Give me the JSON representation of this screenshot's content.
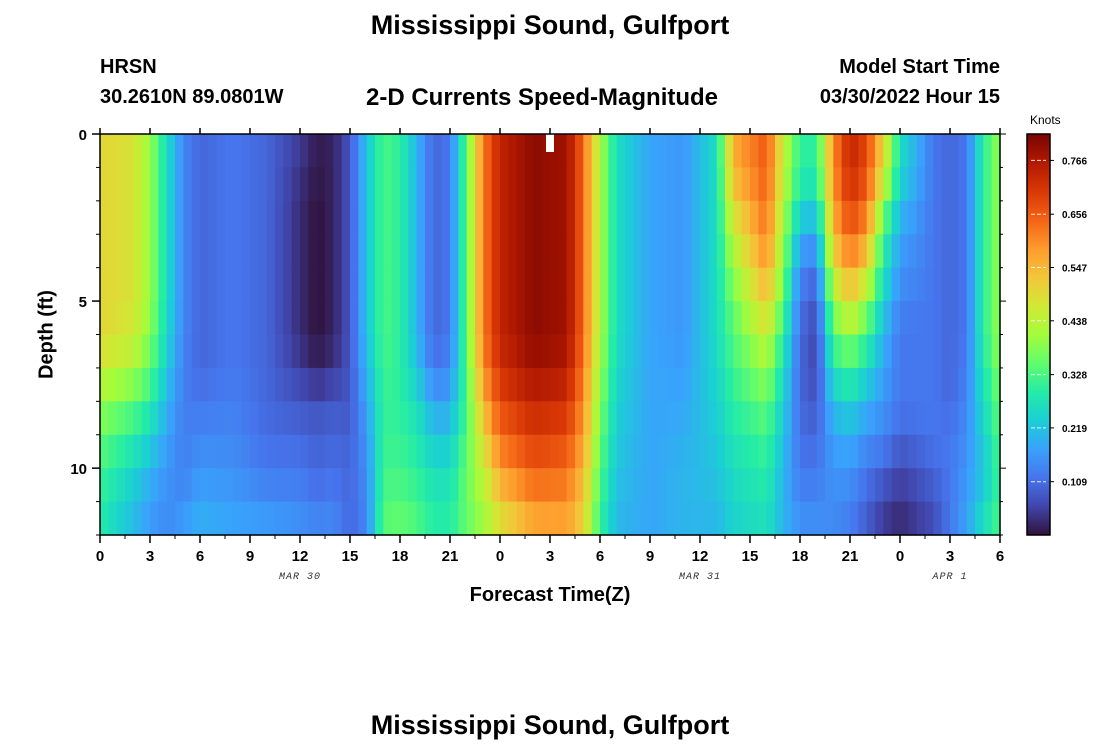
{
  "page": {
    "title_top": "Mississippi Sound, Gulfport",
    "title_bottom": "Mississippi Sound, Gulfport",
    "station": "HRSN",
    "coords": "30.2610N  89.0801W",
    "subtitle": "2-D Currents Speed-Magnitude",
    "model_start_label": "Model Start Time",
    "model_start_value": "03/30/2022 Hour 15"
  },
  "chart_data": {
    "type": "heatmap",
    "title": "2-D Currents Speed-Magnitude",
    "xlabel": "Forecast Time(Z)",
    "ylabel": "Depth (ft)",
    "x_range_hours": [
      0,
      54
    ],
    "y_range_ft": [
      0,
      12
    ],
    "y_inverted": true,
    "x_ticks": [
      "0",
      "3",
      "6",
      "9",
      "12",
      "15",
      "18",
      "21",
      "0",
      "3",
      "6",
      "9",
      "12",
      "15",
      "18",
      "21",
      "0",
      "3",
      "6"
    ],
    "date_labels": [
      {
        "label": "MAR 30",
        "hour": 12
      },
      {
        "label": "MAR 31",
        "hour": 36
      },
      {
        "label": "APR 1",
        "hour": 51
      }
    ],
    "y_ticks": [
      0,
      5,
      10
    ],
    "colorbar": {
      "unit": "Knots",
      "min": 0.0,
      "max": 0.82,
      "ticks": [
        0.109,
        0.219,
        0.328,
        0.438,
        0.547,
        0.656,
        0.766
      ],
      "colors": [
        "#30123b",
        "#4145ab",
        "#4675ed",
        "#39a2fc",
        "#1bcfd4",
        "#24eca6",
        "#61fc6c",
        "#a4fc3b",
        "#d1e834",
        "#f3c63a",
        "#fe9b2d",
        "#f36315",
        "#d93806",
        "#b11901",
        "#7a0402"
      ]
    },
    "current_time_marker_hour": 27,
    "depth_levels_ft": [
      0,
      1,
      2,
      3,
      4,
      5,
      6,
      7,
      8,
      9,
      10,
      11,
      12
    ],
    "speed_keyframes": [
      {
        "h": 0,
        "s": [
          0.5,
          0.5,
          0.5,
          0.5,
          0.5,
          0.5,
          0.5,
          0.46,
          0.4,
          0.36,
          0.32,
          0.3,
          0.28
        ]
      },
      {
        "h": 2,
        "s": [
          0.48,
          0.48,
          0.48,
          0.48,
          0.48,
          0.48,
          0.46,
          0.42,
          0.35,
          0.3,
          0.25,
          0.22,
          0.2
        ]
      },
      {
        "h": 3,
        "s": [
          0.4,
          0.4,
          0.4,
          0.4,
          0.4,
          0.4,
          0.38,
          0.35,
          0.3,
          0.25,
          0.2,
          0.18,
          0.16
        ]
      },
      {
        "h": 4,
        "s": [
          0.26,
          0.26,
          0.26,
          0.26,
          0.26,
          0.26,
          0.25,
          0.23,
          0.2,
          0.18,
          0.16,
          0.15,
          0.14
        ]
      },
      {
        "h": 5,
        "s": [
          0.14,
          0.14,
          0.14,
          0.14,
          0.14,
          0.14,
          0.14,
          0.13,
          0.13,
          0.13,
          0.13,
          0.15,
          0.18
        ]
      },
      {
        "h": 6,
        "s": [
          0.1,
          0.1,
          0.1,
          0.1,
          0.1,
          0.1,
          0.1,
          0.1,
          0.12,
          0.14,
          0.16,
          0.18,
          0.2
        ]
      },
      {
        "h": 8,
        "s": [
          0.12,
          0.12,
          0.12,
          0.12,
          0.12,
          0.12,
          0.12,
          0.12,
          0.13,
          0.14,
          0.15,
          0.17,
          0.18
        ]
      },
      {
        "h": 10,
        "s": [
          0.1,
          0.1,
          0.1,
          0.1,
          0.1,
          0.1,
          0.1,
          0.1,
          0.1,
          0.11,
          0.12,
          0.15,
          0.18
        ]
      },
      {
        "h": 12,
        "s": [
          0.05,
          0.04,
          0.03,
          0.03,
          0.03,
          0.03,
          0.03,
          0.05,
          0.08,
          0.1,
          0.12,
          0.14,
          0.16
        ]
      },
      {
        "h": 13,
        "s": [
          0.01,
          0.01,
          0.0,
          0.0,
          0.0,
          0.0,
          0.0,
          0.02,
          0.07,
          0.09,
          0.1,
          0.12,
          0.15
        ]
      },
      {
        "h": 14,
        "s": [
          0.02,
          0.02,
          0.02,
          0.02,
          0.02,
          0.02,
          0.02,
          0.04,
          0.08,
          0.1,
          0.11,
          0.13,
          0.15
        ]
      },
      {
        "h": 15,
        "s": [
          0.08,
          0.08,
          0.08,
          0.08,
          0.08,
          0.08,
          0.08,
          0.08,
          0.08,
          0.09,
          0.1,
          0.1,
          0.1
        ]
      },
      {
        "h": 16,
        "s": [
          0.22,
          0.22,
          0.22,
          0.22,
          0.22,
          0.22,
          0.22,
          0.2,
          0.18,
          0.16,
          0.15,
          0.14,
          0.14
        ]
      },
      {
        "h": 17,
        "s": [
          0.33,
          0.33,
          0.33,
          0.33,
          0.33,
          0.33,
          0.33,
          0.32,
          0.31,
          0.31,
          0.32,
          0.33,
          0.35
        ]
      },
      {
        "h": 18,
        "s": [
          0.3,
          0.3,
          0.3,
          0.3,
          0.3,
          0.3,
          0.3,
          0.3,
          0.3,
          0.31,
          0.32,
          0.34,
          0.36
        ]
      },
      {
        "h": 19,
        "s": [
          0.2,
          0.2,
          0.2,
          0.2,
          0.2,
          0.2,
          0.2,
          0.22,
          0.26,
          0.28,
          0.3,
          0.32,
          0.34
        ]
      },
      {
        "h": 20,
        "s": [
          0.1,
          0.1,
          0.1,
          0.1,
          0.1,
          0.1,
          0.1,
          0.12,
          0.18,
          0.22,
          0.26,
          0.28,
          0.3
        ]
      },
      {
        "h": 21,
        "s": [
          0.12,
          0.12,
          0.12,
          0.12,
          0.12,
          0.12,
          0.12,
          0.14,
          0.18,
          0.22,
          0.26,
          0.28,
          0.3
        ]
      },
      {
        "h": 22,
        "s": [
          0.35,
          0.35,
          0.35,
          0.35,
          0.35,
          0.35,
          0.35,
          0.34,
          0.33,
          0.34,
          0.36,
          0.36,
          0.35
        ]
      },
      {
        "h": 23,
        "s": [
          0.62,
          0.62,
          0.62,
          0.62,
          0.62,
          0.62,
          0.62,
          0.6,
          0.55,
          0.5,
          0.45,
          0.42,
          0.4
        ]
      },
      {
        "h": 24,
        "s": [
          0.74,
          0.74,
          0.74,
          0.74,
          0.74,
          0.74,
          0.74,
          0.72,
          0.68,
          0.64,
          0.58,
          0.52,
          0.46
        ]
      },
      {
        "h": 26,
        "s": [
          0.8,
          0.8,
          0.8,
          0.8,
          0.8,
          0.8,
          0.8,
          0.78,
          0.74,
          0.7,
          0.66,
          0.6,
          0.55
        ]
      },
      {
        "h": 28,
        "s": [
          0.78,
          0.78,
          0.78,
          0.78,
          0.78,
          0.78,
          0.78,
          0.76,
          0.72,
          0.68,
          0.64,
          0.6,
          0.56
        ]
      },
      {
        "h": 29,
        "s": [
          0.64,
          0.64,
          0.64,
          0.64,
          0.64,
          0.64,
          0.64,
          0.62,
          0.6,
          0.58,
          0.55,
          0.52,
          0.5
        ]
      },
      {
        "h": 30,
        "s": [
          0.42,
          0.42,
          0.42,
          0.42,
          0.42,
          0.42,
          0.42,
          0.4,
          0.38,
          0.36,
          0.34,
          0.32,
          0.3
        ]
      },
      {
        "h": 31,
        "s": [
          0.26,
          0.26,
          0.26,
          0.26,
          0.26,
          0.26,
          0.26,
          0.25,
          0.24,
          0.23,
          0.22,
          0.21,
          0.2
        ]
      },
      {
        "h": 33,
        "s": [
          0.18,
          0.18,
          0.18,
          0.18,
          0.18,
          0.18,
          0.18,
          0.18,
          0.18,
          0.18,
          0.18,
          0.18,
          0.18
        ]
      },
      {
        "h": 35,
        "s": [
          0.16,
          0.16,
          0.16,
          0.16,
          0.16,
          0.16,
          0.16,
          0.17,
          0.18,
          0.19,
          0.2,
          0.2,
          0.2
        ]
      },
      {
        "h": 37,
        "s": [
          0.26,
          0.26,
          0.26,
          0.26,
          0.26,
          0.26,
          0.26,
          0.25,
          0.24,
          0.23,
          0.22,
          0.21,
          0.2
        ]
      },
      {
        "h": 38,
        "s": [
          0.56,
          0.56,
          0.5,
          0.45,
          0.4,
          0.36,
          0.34,
          0.32,
          0.3,
          0.28,
          0.26,
          0.25,
          0.24
        ]
      },
      {
        "h": 40,
        "s": [
          0.66,
          0.66,
          0.64,
          0.62,
          0.58,
          0.52,
          0.46,
          0.4,
          0.36,
          0.32,
          0.3,
          0.28,
          0.26
        ]
      },
      {
        "h": 41,
        "s": [
          0.45,
          0.45,
          0.43,
          0.4,
          0.38,
          0.34,
          0.3,
          0.26,
          0.24,
          0.22,
          0.2,
          0.2,
          0.2
        ]
      },
      {
        "h": 42,
        "s": [
          0.3,
          0.3,
          0.26,
          0.2,
          0.14,
          0.12,
          0.1,
          0.1,
          0.1,
          0.11,
          0.12,
          0.14,
          0.16
        ]
      },
      {
        "h": 43,
        "s": [
          0.3,
          0.3,
          0.25,
          0.18,
          0.12,
          0.08,
          0.06,
          0.06,
          0.08,
          0.1,
          0.12,
          0.14,
          0.16
        ]
      },
      {
        "h": 44,
        "s": [
          0.6,
          0.6,
          0.58,
          0.54,
          0.48,
          0.4,
          0.34,
          0.28,
          0.22,
          0.18,
          0.16,
          0.15,
          0.14
        ]
      },
      {
        "h": 45,
        "s": [
          0.74,
          0.74,
          0.7,
          0.66,
          0.58,
          0.5,
          0.4,
          0.32,
          0.25,
          0.2,
          0.16,
          0.14,
          0.12
        ]
      },
      {
        "h": 46,
        "s": [
          0.68,
          0.68,
          0.64,
          0.58,
          0.5,
          0.4,
          0.32,
          0.26,
          0.2,
          0.16,
          0.12,
          0.1,
          0.08
        ]
      },
      {
        "h": 47,
        "s": [
          0.5,
          0.5,
          0.4,
          0.32,
          0.28,
          0.24,
          0.2,
          0.18,
          0.16,
          0.14,
          0.1,
          0.06,
          0.04
        ]
      },
      {
        "h": 48,
        "s": [
          0.26,
          0.26,
          0.22,
          0.18,
          0.16,
          0.14,
          0.12,
          0.12,
          0.12,
          0.1,
          0.06,
          0.04,
          0.02
        ]
      },
      {
        "h": 50,
        "s": [
          0.12,
          0.12,
          0.12,
          0.12,
          0.12,
          0.12,
          0.12,
          0.12,
          0.12,
          0.12,
          0.1,
          0.08,
          0.06
        ]
      },
      {
        "h": 51,
        "s": [
          0.1,
          0.1,
          0.1,
          0.1,
          0.1,
          0.1,
          0.1,
          0.1,
          0.1,
          0.12,
          0.12,
          0.12,
          0.12
        ]
      },
      {
        "h": 52,
        "s": [
          0.12,
          0.12,
          0.12,
          0.12,
          0.12,
          0.12,
          0.12,
          0.13,
          0.14,
          0.15,
          0.16,
          0.17,
          0.18
        ]
      },
      {
        "h": 53,
        "s": [
          0.3,
          0.3,
          0.3,
          0.3,
          0.3,
          0.3,
          0.3,
          0.28,
          0.26,
          0.24,
          0.22,
          0.24,
          0.28
        ]
      },
      {
        "h": 54,
        "s": [
          0.4,
          0.4,
          0.4,
          0.4,
          0.4,
          0.4,
          0.4,
          0.38,
          0.36,
          0.34,
          0.32,
          0.32,
          0.34
        ]
      }
    ]
  }
}
